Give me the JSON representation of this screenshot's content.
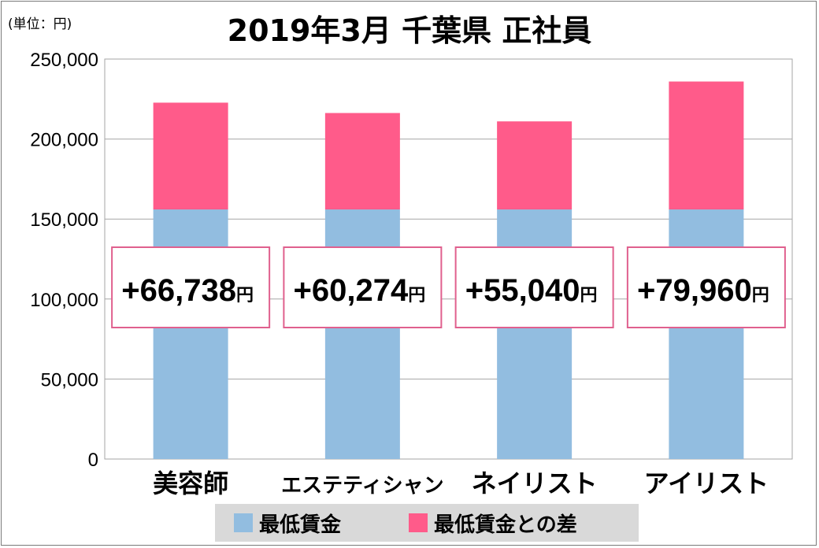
{
  "unit_label": "(単位：円)",
  "chart_data": {
    "type": "bar",
    "stacked": true,
    "title": "2019年3月 千葉県 正社員",
    "categories": [
      "美容師",
      "エステティシャン",
      "ネイリスト",
      "アイリスト"
    ],
    "series": [
      {
        "name": "最低賃金",
        "color": "#92bde0",
        "values": [
          156000,
          156000,
          156000,
          156000
        ]
      },
      {
        "name": "最低賃金との差",
        "color": "#ff5b8a",
        "values": [
          66738,
          60274,
          55040,
          79960
        ]
      }
    ],
    "annotations": [
      "+66,738",
      "+60,274",
      "+55,040",
      "+79,960"
    ],
    "annotation_unit": "円",
    "ylim": [
      0,
      250000
    ],
    "yticks": [
      0,
      50000,
      100000,
      150000,
      200000,
      250000
    ],
    "ytick_labels": [
      "0",
      "50,000",
      "100,000",
      "150,000",
      "200,000",
      "250,000"
    ],
    "grid": true,
    "legend_position": "bottom"
  }
}
